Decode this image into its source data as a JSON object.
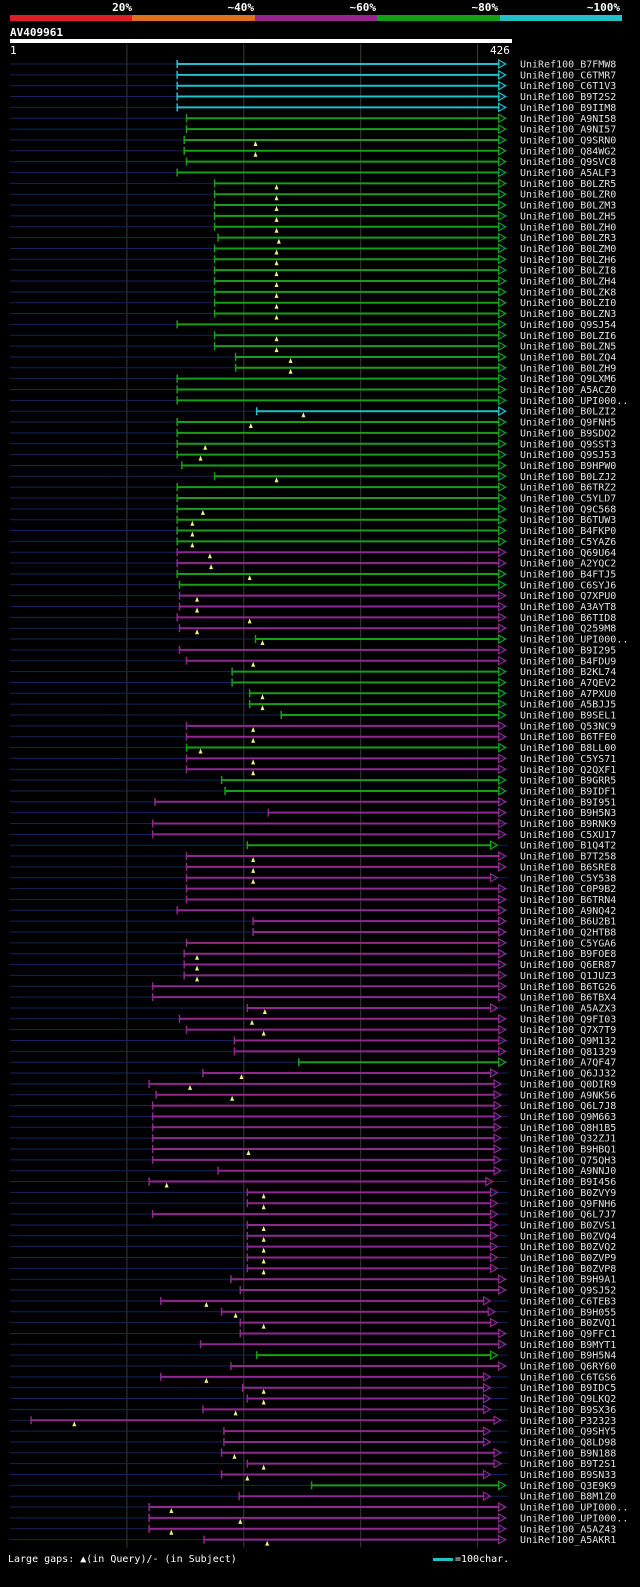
{
  "legend": [
    {
      "label": "20%",
      "color": "#e01c24"
    },
    {
      "label": "~40%",
      "color": "#e0701c"
    },
    {
      "label": "~60%",
      "color": "#902890"
    },
    {
      "label": "~80%",
      "color": "#17a017"
    },
    {
      "label": "~100%",
      "color": "#22c0c8"
    }
  ],
  "query": {
    "name": "AV409961",
    "start": "1",
    "end": "426"
  },
  "footer": {
    "gaps_text": "Large gaps: ▲(in Query)/- (in Subject)",
    "scale_text": "=100char."
  },
  "chart_data": {
    "type": "alignment-overview",
    "query_length": 426,
    "grid_positions": [
      100,
      200,
      300,
      400
    ],
    "hits": [
      {
        "name": "UniRef100_B7FMW8",
        "start": 143,
        "end": 424,
        "identity": "~100%"
      },
      {
        "name": "UniRef100_C6TMR7",
        "start": 143,
        "end": 424,
        "identity": "~100%"
      },
      {
        "name": "UniRef100_C6T1V3",
        "start": 143,
        "end": 424,
        "identity": "~100%"
      },
      {
        "name": "UniRef100_B9T2S2",
        "start": 143,
        "end": 424,
        "identity": "~100%"
      },
      {
        "name": "UniRef100_B9IIM8",
        "start": 143,
        "end": 424,
        "identity": "~100%"
      },
      {
        "name": "UniRef100_A9NI58",
        "start": 151,
        "end": 424,
        "identity": "~80%"
      },
      {
        "name": "UniRef100_A9NI57",
        "start": 151,
        "end": 424,
        "identity": "~80%"
      },
      {
        "name": "UniRef100_Q9SRN0",
        "start": 149,
        "end": 424,
        "identity": "~80%",
        "gap": 210
      },
      {
        "name": "UniRef100_Q84WG2",
        "start": 149,
        "end": 424,
        "identity": "~80%",
        "gap": 210
      },
      {
        "name": "UniRef100_Q9SVC8",
        "start": 151,
        "end": 424,
        "identity": "~80%"
      },
      {
        "name": "UniRef100_A5ALF3",
        "start": 143,
        "end": 424,
        "identity": "~80%"
      },
      {
        "name": "UniRef100_B0LZR5",
        "start": 175,
        "end": 424,
        "identity": "~80%",
        "gap": 228
      },
      {
        "name": "UniRef100_B0LZR0",
        "start": 175,
        "end": 424,
        "identity": "~80%",
        "gap": 228
      },
      {
        "name": "UniRef100_B0LZM3",
        "start": 175,
        "end": 424,
        "identity": "~80%",
        "gap": 228
      },
      {
        "name": "UniRef100_B0LZH5",
        "start": 175,
        "end": 424,
        "identity": "~80%",
        "gap": 228
      },
      {
        "name": "UniRef100_B0LZH0",
        "start": 175,
        "end": 424,
        "identity": "~80%",
        "gap": 228
      },
      {
        "name": "UniRef100_B0LZR3",
        "start": 178,
        "end": 424,
        "identity": "~80%",
        "gap": 230
      },
      {
        "name": "UniRef100_B0LZM0",
        "start": 175,
        "end": 424,
        "identity": "~80%",
        "gap": 228
      },
      {
        "name": "UniRef100_B0LZH6",
        "start": 175,
        "end": 424,
        "identity": "~80%",
        "gap": 228
      },
      {
        "name": "UniRef100_B0LZI8",
        "start": 175,
        "end": 424,
        "identity": "~80%",
        "gap": 228
      },
      {
        "name": "UniRef100_B0LZH4",
        "start": 175,
        "end": 424,
        "identity": "~80%",
        "gap": 228
      },
      {
        "name": "UniRef100_B0LZK8",
        "start": 175,
        "end": 424,
        "identity": "~80%",
        "gap": 228
      },
      {
        "name": "UniRef100_B0LZI0",
        "start": 175,
        "end": 424,
        "identity": "~80%",
        "gap": 228
      },
      {
        "name": "UniRef100_B0LZN3",
        "start": 175,
        "end": 424,
        "identity": "~80%",
        "gap": 228
      },
      {
        "name": "UniRef100_Q9SJ54",
        "start": 143,
        "end": 424,
        "identity": "~80%"
      },
      {
        "name": "UniRef100_B0LZI6",
        "start": 175,
        "end": 424,
        "identity": "~80%",
        "gap": 228
      },
      {
        "name": "UniRef100_B0LZN5",
        "start": 175,
        "end": 424,
        "identity": "~80%",
        "gap": 228
      },
      {
        "name": "UniRef100_B0LZQ4",
        "start": 193,
        "end": 424,
        "identity": "~80%",
        "gap": 240
      },
      {
        "name": "UniRef100_B0LZH9",
        "start": 193,
        "end": 424,
        "identity": "~80%",
        "gap": 240
      },
      {
        "name": "UniRef100_Q9LXM6",
        "start": 143,
        "end": 424,
        "identity": "~80%"
      },
      {
        "name": "UniRef100_A5ACZ0",
        "start": 143,
        "end": 424,
        "identity": "~80%"
      },
      {
        "name": "UniRef100_UPI000..",
        "start": 143,
        "end": 424,
        "identity": "~80%"
      },
      {
        "name": "UniRef100_B0LZI2",
        "start": 211,
        "end": 424,
        "identity": "~100%",
        "gap": 251
      },
      {
        "name": "UniRef100_Q9FNH5",
        "start": 143,
        "end": 424,
        "identity": "~80%",
        "gap": 206
      },
      {
        "name": "UniRef100_B9SDQ2",
        "start": 143,
        "end": 424,
        "identity": "~80%"
      },
      {
        "name": "UniRef100_Q9SST3",
        "start": 143,
        "end": 424,
        "identity": "~80%",
        "gap": 167
      },
      {
        "name": "UniRef100_Q9SJ53",
        "start": 143,
        "end": 424,
        "identity": "~80%",
        "gap": 163
      },
      {
        "name": "UniRef100_B9HPW0",
        "start": 147,
        "end": 424,
        "identity": "~80%"
      },
      {
        "name": "UniRef100_B0LZJ2",
        "start": 175,
        "end": 424,
        "identity": "~80%",
        "gap": 228
      },
      {
        "name": "UniRef100_B6TRZ2",
        "start": 143,
        "end": 424,
        "identity": "~80%"
      },
      {
        "name": "UniRef100_C5YLD7",
        "start": 143,
        "end": 424,
        "identity": "~80%"
      },
      {
        "name": "UniRef100_Q9C568",
        "start": 143,
        "end": 424,
        "identity": "~80%",
        "gap": 165
      },
      {
        "name": "UniRef100_B6TUW3",
        "start": 143,
        "end": 424,
        "identity": "~80%",
        "gap": 156
      },
      {
        "name": "UniRef100_B4FKP0",
        "start": 143,
        "end": 424,
        "identity": "~80%",
        "gap": 156
      },
      {
        "name": "UniRef100_C5YAZ6",
        "start": 143,
        "end": 424,
        "identity": "~80%",
        "gap": 156
      },
      {
        "name": "UniRef100_Q69U64",
        "start": 143,
        "end": 424,
        "identity": "~60%",
        "gap": 171
      },
      {
        "name": "UniRef100_A2YQC2",
        "start": 143,
        "end": 424,
        "identity": "~60%",
        "gap": 172
      },
      {
        "name": "UniRef100_B4FTJ5",
        "start": 143,
        "end": 424,
        "identity": "~80%",
        "gap": 205
      },
      {
        "name": "UniRef100_C6SYJ6",
        "start": 145,
        "end": 424,
        "identity": "~80%"
      },
      {
        "name": "UniRef100_Q7XPU0",
        "start": 145,
        "end": 424,
        "identity": "~60%",
        "gap": 160
      },
      {
        "name": "UniRef100_A3AYT8",
        "start": 145,
        "end": 424,
        "identity": "~60%",
        "gap": 160
      },
      {
        "name": "UniRef100_B6TID8",
        "start": 143,
        "end": 424,
        "identity": "~60%",
        "gap": 205
      },
      {
        "name": "UniRef100_Q259M8",
        "start": 145,
        "end": 424,
        "identity": "~60%",
        "gap": 160
      },
      {
        "name": "UniRef100_UPI000..",
        "start": 210,
        "end": 424,
        "identity": "~80%",
        "gap": 216
      },
      {
        "name": "UniRef100_B9I295",
        "start": 145,
        "end": 424,
        "identity": "~60%"
      },
      {
        "name": "UniRef100_B4FDU9",
        "start": 151,
        "end": 424,
        "identity": "~60%",
        "gap": 208
      },
      {
        "name": "UniRef100_B2KL74",
        "start": 190,
        "end": 424,
        "identity": "~80%"
      },
      {
        "name": "UniRef100_A7QEV2",
        "start": 190,
        "end": 424,
        "identity": "~80%"
      },
      {
        "name": "UniRef100_A7PXU0",
        "start": 205,
        "end": 424,
        "identity": "~80%",
        "gap": 216
      },
      {
        "name": "UniRef100_A5BJJ5",
        "start": 205,
        "end": 424,
        "identity": "~80%",
        "gap": 216
      },
      {
        "name": "UniRef100_B9SEL1",
        "start": 232,
        "end": 424,
        "identity": "~80%"
      },
      {
        "name": "UniRef100_Q53NC9",
        "start": 151,
        "end": 424,
        "identity": "~60%",
        "gap": 208
      },
      {
        "name": "UniRef100_B6TFE0",
        "start": 151,
        "end": 424,
        "identity": "~60%",
        "gap": 208
      },
      {
        "name": "UniRef100_B8LL00",
        "start": 151,
        "end": 424,
        "identity": "~80%",
        "gap": 163
      },
      {
        "name": "UniRef100_C5YS71",
        "start": 151,
        "end": 424,
        "identity": "~60%",
        "gap": 208
      },
      {
        "name": "UniRef100_Q2QXF1",
        "start": 151,
        "end": 424,
        "identity": "~60%",
        "gap": 208
      },
      {
        "name": "UniRef100_B9GRR5",
        "start": 181,
        "end": 424,
        "identity": "~80%"
      },
      {
        "name": "UniRef100_B9IDF1",
        "start": 184,
        "end": 424,
        "identity": "~80%"
      },
      {
        "name": "UniRef100_B9I951",
        "start": 124,
        "end": 424,
        "identity": "~60%"
      },
      {
        "name": "UniRef100_B9H5N3",
        "start": 221,
        "end": 424,
        "identity": "~60%"
      },
      {
        "name": "UniRef100_B9RNK9",
        "start": 122,
        "end": 424,
        "identity": "~60%"
      },
      {
        "name": "UniRef100_C5XU17",
        "start": 122,
        "end": 424,
        "identity": "~60%"
      },
      {
        "name": "UniRef100_B1Q4T2",
        "start": 203,
        "end": 417,
        "identity": "~80%"
      },
      {
        "name": "UniRef100_B7T258",
        "start": 151,
        "end": 424,
        "identity": "~60%",
        "gap": 208
      },
      {
        "name": "UniRef100_B6SRE8",
        "start": 151,
        "end": 424,
        "identity": "~60%",
        "gap": 208
      },
      {
        "name": "UniRef100_C5Y538",
        "start": 151,
        "end": 417,
        "identity": "~60%",
        "gap": 208
      },
      {
        "name": "UniRef100_C0P9B2",
        "start": 151,
        "end": 424,
        "identity": "~60%"
      },
      {
        "name": "UniRef100_B6TRN4",
        "start": 151,
        "end": 424,
        "identity": "~60%"
      },
      {
        "name": "UniRef100_A9NQ42",
        "start": 143,
        "end": 424,
        "identity": "~60%"
      },
      {
        "name": "UniRef100_B6U2B1",
        "start": 208,
        "end": 424,
        "identity": "~60%"
      },
      {
        "name": "UniRef100_Q2HTB8",
        "start": 208,
        "end": 424,
        "identity": "~60%"
      },
      {
        "name": "UniRef100_C5YGA6",
        "start": 151,
        "end": 424,
        "identity": "~60%"
      },
      {
        "name": "UniRef100_B9FOE8",
        "start": 149,
        "end": 424,
        "identity": "~60%",
        "gap": 160
      },
      {
        "name": "UniRef100_Q6ER87",
        "start": 149,
        "end": 424,
        "identity": "~60%",
        "gap": 160
      },
      {
        "name": "UniRef100_Q1JUZ3",
        "start": 149,
        "end": 424,
        "identity": "~60%",
        "gap": 160
      },
      {
        "name": "UniRef100_B6TG26",
        "start": 122,
        "end": 424,
        "identity": "~60%"
      },
      {
        "name": "UniRef100_B6TBX4",
        "start": 122,
        "end": 424,
        "identity": "~60%"
      },
      {
        "name": "UniRef100_A5AZX3",
        "start": 203,
        "end": 417,
        "identity": "~60%",
        "gap": 218
      },
      {
        "name": "UniRef100_Q9FI03",
        "start": 145,
        "end": 424,
        "identity": "~60%",
        "gap": 207
      },
      {
        "name": "UniRef100_Q7X7T9",
        "start": 151,
        "end": 424,
        "identity": "~60%",
        "gap": 217
      },
      {
        "name": "UniRef100_Q9M132",
        "start": 192,
        "end": 424,
        "identity": "~60%"
      },
      {
        "name": "UniRef100_Q81329",
        "start": 192,
        "end": 424,
        "identity": "~60%"
      },
      {
        "name": "UniRef100_A7QF47",
        "start": 247,
        "end": 424,
        "identity": "~80%"
      },
      {
        "name": "UniRef100_Q6JJ32",
        "start": 165,
        "end": 417,
        "identity": "~60%",
        "gap": 198
      },
      {
        "name": "UniRef100_Q0DIR9",
        "start": 119,
        "end": 420,
        "identity": "~60%",
        "gap": 154
      },
      {
        "name": "UniRef100_A9NK56",
        "start": 125,
        "end": 420,
        "identity": "~60%",
        "gap": 190
      },
      {
        "name": "UniRef100_Q6L7J8",
        "start": 122,
        "end": 420,
        "identity": "~60%"
      },
      {
        "name": "UniRef100_Q9M663",
        "start": 122,
        "end": 420,
        "identity": "~60%"
      },
      {
        "name": "UniRef100_Q8H1B5",
        "start": 122,
        "end": 420,
        "identity": "~60%"
      },
      {
        "name": "UniRef100_Q32ZJ1",
        "start": 122,
        "end": 420,
        "identity": "~60%"
      },
      {
        "name": "UniRef100_B9HBQ1",
        "start": 122,
        "end": 420,
        "identity": "~60%",
        "gap": 204
      },
      {
        "name": "UniRef100_Q75QH3",
        "start": 122,
        "end": 420,
        "identity": "~60%"
      },
      {
        "name": "UniRef100_A9NNJ0",
        "start": 178,
        "end": 420,
        "identity": "~60%"
      },
      {
        "name": "UniRef100_B9I456",
        "start": 119,
        "end": 413,
        "identity": "~60%",
        "gap": 134
      },
      {
        "name": "UniRef100_B0ZVY9",
        "start": 203,
        "end": 417,
        "identity": "~60%",
        "gap": 217
      },
      {
        "name": "UniRef100_Q9FNH6",
        "start": 203,
        "end": 417,
        "identity": "~60%",
        "gap": 217
      },
      {
        "name": "UniRef100_Q6L7J7",
        "start": 122,
        "end": 417,
        "identity": "~60%"
      },
      {
        "name": "UniRef100_B0ZVS1",
        "start": 203,
        "end": 417,
        "identity": "~60%",
        "gap": 217
      },
      {
        "name": "UniRef100_B0ZVQ4",
        "start": 203,
        "end": 417,
        "identity": "~60%",
        "gap": 217
      },
      {
        "name": "UniRef100_B0ZVQ2",
        "start": 203,
        "end": 417,
        "identity": "~60%",
        "gap": 217
      },
      {
        "name": "UniRef100_B0ZVP9",
        "start": 203,
        "end": 417,
        "identity": "~60%",
        "gap": 217
      },
      {
        "name": "UniRef100_B0ZVP8",
        "start": 203,
        "end": 417,
        "identity": "~60%",
        "gap": 217
      },
      {
        "name": "UniRef100_B9H9A1",
        "start": 189,
        "end": 424,
        "identity": "~60%"
      },
      {
        "name": "UniRef100_Q9SJ52",
        "start": 197,
        "end": 424,
        "identity": "~60%"
      },
      {
        "name": "UniRef100_C6TEB3",
        "start": 129,
        "end": 411,
        "identity": "~60%",
        "gap": 168
      },
      {
        "name": "UniRef100_B9H055",
        "start": 181,
        "end": 415,
        "identity": "~60%",
        "gap": 193
      },
      {
        "name": "UniRef100_B0ZVQ1",
        "start": 197,
        "end": 417,
        "identity": "~60%",
        "gap": 217
      },
      {
        "name": "UniRef100_Q9FFC1",
        "start": 197,
        "end": 424,
        "identity": "~60%"
      },
      {
        "name": "UniRef100_B9MYT1",
        "start": 163,
        "end": 424,
        "identity": "~60%"
      },
      {
        "name": "UniRef100_B9H5N4",
        "start": 211,
        "end": 417,
        "identity": "~80%"
      },
      {
        "name": "UniRef100_Q6RY60",
        "start": 189,
        "end": 424,
        "identity": "~60%"
      },
      {
        "name": "UniRef100_C6TGS6",
        "start": 129,
        "end": 411,
        "identity": "~60%",
        "gap": 168
      },
      {
        "name": "UniRef100_B9IDC5",
        "start": 199,
        "end": 411,
        "identity": "~60%",
        "gap": 217
      },
      {
        "name": "UniRef100_Q9LKQ2",
        "start": 203,
        "end": 411,
        "identity": "~60%",
        "gap": 217
      },
      {
        "name": "UniRef100_B9SX36",
        "start": 165,
        "end": 411,
        "identity": "~60%",
        "gap": 193
      },
      {
        "name": "UniRef100_P32323",
        "start": 18,
        "end": 420,
        "identity": "~60%",
        "gap": 55
      },
      {
        "name": "UniRef100_Q9SHY5",
        "start": 183,
        "end": 411,
        "identity": "~60%"
      },
      {
        "name": "UniRef100_Q8LD98",
        "start": 183,
        "end": 411,
        "identity": "~60%"
      },
      {
        "name": "UniRef100_B9N188",
        "start": 181,
        "end": 420,
        "identity": "~60%",
        "gap": 192
      },
      {
        "name": "UniRef100_B9T2S1",
        "start": 203,
        "end": 420,
        "identity": "~60%",
        "gap": 217
      },
      {
        "name": "UniRef100_B9SN33",
        "start": 181,
        "end": 411,
        "identity": "~60%",
        "gap": 203
      },
      {
        "name": "UniRef100_Q3E9K9",
        "start": 258,
        "end": 424,
        "identity": "~80%"
      },
      {
        "name": "UniRef100_B8M1Z0",
        "start": 196,
        "end": 411,
        "identity": "~60%"
      },
      {
        "name": "UniRef100_UPI000..",
        "start": 119,
        "end": 424,
        "identity": "~60%",
        "gap": 138
      },
      {
        "name": "UniRef100_UPI000..",
        "start": 119,
        "end": 424,
        "identity": "~60%",
        "gap": 197
      },
      {
        "name": "UniRef100_A5AZ43",
        "start": 119,
        "end": 424,
        "identity": "~60%",
        "gap": 138
      },
      {
        "name": "UniRef100_A5AKR1",
        "start": 166,
        "end": 424,
        "identity": "~60%",
        "gap": 220
      }
    ]
  }
}
